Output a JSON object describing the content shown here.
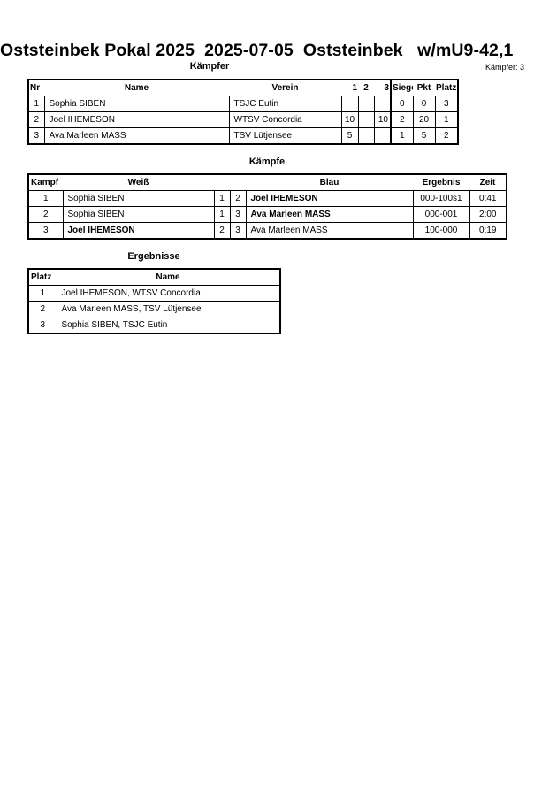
{
  "header": {
    "title": "Oststeinbek Pokal 2025  2025-07-05  Oststeinbek   w/mU9-42,1",
    "fighters_heading": "Kämpfer",
    "fighters_count": "Kämpfer: 3"
  },
  "fighters": {
    "columns": [
      "Nr",
      "Name",
      "Verein",
      "1",
      "2",
      "3",
      "Siege",
      "Pkt",
      "Platz"
    ],
    "rows": [
      [
        "1",
        "Sophia SIBEN",
        "TSJC Eutin",
        "",
        "",
        "",
        "0",
        "0",
        "3"
      ],
      [
        "2",
        "Joel IHEMESON",
        "WTSV Concordia",
        "10",
        "",
        "10",
        "2",
        "20",
        "1"
      ],
      [
        "3",
        "Ava Marleen MASS",
        "TSV Lütjensee",
        "5",
        "",
        "",
        "1",
        "5",
        "2"
      ]
    ]
  },
  "fights": {
    "heading": "Kämpfe",
    "columns": [
      "Kampf",
      "Weiß",
      "Blau",
      "Ergebnis",
      "Zeit"
    ],
    "rows": [
      {
        "nr": "1",
        "white": "Sophia SIBEN",
        "wn": "1",
        "bn": "2",
        "blue": "Joel IHEMESON",
        "result": "000-100s1",
        "time": "0:41",
        "winner": "blue"
      },
      {
        "nr": "2",
        "white": "Sophia SIBEN",
        "wn": "1",
        "bn": "3",
        "blue": "Ava Marleen MASS",
        "result": "000-001",
        "time": "2:00",
        "winner": "blue"
      },
      {
        "nr": "3",
        "white": "Joel IHEMESON",
        "wn": "2",
        "bn": "3",
        "blue": "Ava Marleen MASS",
        "result": "100-000",
        "time": "0:19",
        "winner": "white"
      }
    ]
  },
  "results": {
    "heading": "Ergebnisse",
    "columns": [
      "Platz",
      "Name"
    ],
    "rows": [
      [
        "1",
        "Joel IHEMESON, WTSV Concordia"
      ],
      [
        "2",
        "Ava Marleen MASS, TSV Lütjensee"
      ],
      [
        "3",
        "Sophia SIBEN, TSJC Eutin"
      ]
    ]
  }
}
